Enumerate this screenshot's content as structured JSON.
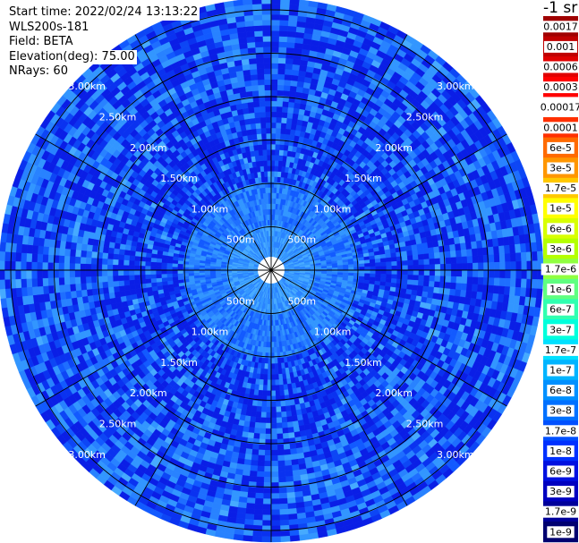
{
  "header": {
    "start_time": "Start time: 2022/02/24 13:13:22",
    "instrument": "WLS200s-181",
    "field": "Field: BETA",
    "elevation": "Elevation(deg): 75.00",
    "nrays": "NRays: 60"
  },
  "colorbar": {
    "unit_label": "-1 sr",
    "labels": [
      "0.0017",
      "0.001",
      "0.0006",
      "0.0003",
      "0.00017",
      "0.0001",
      "6e-5",
      "3e-5",
      "1.7e-5",
      "1e-5",
      "6e-6",
      "3e-6",
      "1.7e-6",
      "1e-6",
      "6e-7",
      "3e-7",
      "1.7e-7",
      "1e-7",
      "6e-8",
      "3e-8",
      "1.7e-8",
      "1e-8",
      "6e-9",
      "3e-9",
      "1.7e-9",
      "1e-9"
    ],
    "colors": [
      "#a00000",
      "#c00000",
      "#e00000",
      "#ff0000",
      "#ffffff",
      "#ff3000",
      "#ff6a00",
      "#ff9600",
      "#ffc800",
      "#ffff00",
      "#d8ff00",
      "#b4ff00",
      "#90ff40",
      "#60ff80",
      "#30ffb0",
      "#00ffdc",
      "#00e0ff",
      "#00b4ff",
      "#0090ff",
      "#0070ff",
      "#0050ff",
      "#0030ff",
      "#0010e0",
      "#0000c0",
      "#00009a",
      "#000070"
    ]
  },
  "chart_data": {
    "type": "heatmap",
    "projection": "polar (PPI)",
    "field": "BETA",
    "elevation_deg": 75.0,
    "n_rays": 60,
    "range_rings": [
      "500m",
      "1.00km",
      "1.50km",
      "2.00km",
      "2.50km",
      "3.00km"
    ],
    "range_ring_values_km": [
      0.5,
      1.0,
      1.5,
      2.0,
      2.5,
      3.0
    ],
    "spoke_azimuths_deg": [
      0,
      30,
      60,
      90,
      120,
      150,
      180,
      210,
      240,
      270,
      300,
      330
    ],
    "value_summary": "Backscatter mostly in the 1e-8 to 6e-8 range (blue) at all ranges, slightly higher (1e-7 to 3e-7, cyan/light blue) near the centre; white near-range gap in the middle."
  }
}
